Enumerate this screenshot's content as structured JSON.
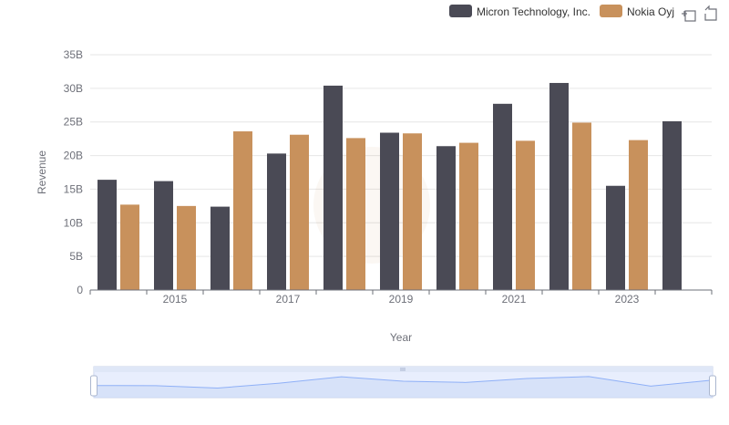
{
  "chart_data": {
    "type": "bar",
    "title": "",
    "xlabel": "Year",
    "ylabel": "Revenue",
    "ylim": [
      0,
      35
    ],
    "y_ticks": [
      {
        "value": 0,
        "label": "0"
      },
      {
        "value": 5,
        "label": "5B"
      },
      {
        "value": 10,
        "label": "10B"
      },
      {
        "value": 15,
        "label": "15B"
      },
      {
        "value": 20,
        "label": "20B"
      },
      {
        "value": 25,
        "label": "25B"
      },
      {
        "value": 30,
        "label": "30B"
      },
      {
        "value": 35,
        "label": "35B"
      }
    ],
    "x_ticks": [
      "2015",
      "2017",
      "2019",
      "2021",
      "2023"
    ],
    "grid": true,
    "legend_position": "top-right",
    "series": [
      {
        "name": "Micron Technology, Inc.",
        "color": "#4a4a55",
        "points": [
          {
            "x": 2014,
            "y": 16.4
          },
          {
            "x": 2015,
            "y": 16.2
          },
          {
            "x": 2016,
            "y": 12.4
          },
          {
            "x": 2017,
            "y": 20.3
          },
          {
            "x": 2018,
            "y": 30.4
          },
          {
            "x": 2019,
            "y": 23.4
          },
          {
            "x": 2020,
            "y": 21.4
          },
          {
            "x": 2021,
            "y": 27.7
          },
          {
            "x": 2022,
            "y": 30.8
          },
          {
            "x": 2023,
            "y": 15.5
          },
          {
            "x": 2024,
            "y": 25.1
          }
        ]
      },
      {
        "name": "Nokia Oyj",
        "color": "#c8915c",
        "points": [
          {
            "x": 2014,
            "y": 12.7
          },
          {
            "x": 2015,
            "y": 12.5
          },
          {
            "x": 2016,
            "y": 23.6
          },
          {
            "x": 2017,
            "y": 23.1
          },
          {
            "x": 2018,
            "y": 22.6
          },
          {
            "x": 2019,
            "y": 23.3
          },
          {
            "x": 2020,
            "y": 21.9
          },
          {
            "x": 2021,
            "y": 22.2
          },
          {
            "x": 2022,
            "y": 24.9
          },
          {
            "x": 2023,
            "y": 22.3
          }
        ]
      }
    ],
    "zoom_range": [
      0,
      1
    ]
  },
  "toolbar": {
    "zoom_icon": "zoom-area-icon",
    "restore_icon": "restore-icon"
  },
  "colors": {
    "grid": "#e6e6e6",
    "axis": "#6e7079",
    "label": "#6e7079",
    "slider_fill": "#d8e3fb",
    "slider_border": "#c9d3ea",
    "slider_line": "#8fb0f7"
  }
}
